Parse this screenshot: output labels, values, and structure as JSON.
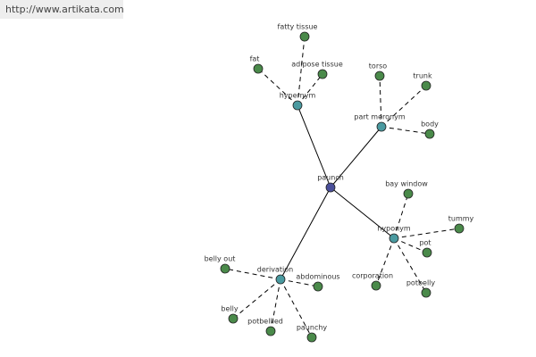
{
  "header": {
    "url": "http://www.artikata.com"
  },
  "nodes": [
    {
      "label": "paunch"
    },
    {
      "label": "hypernym"
    },
    {
      "label": "part meronym"
    },
    {
      "label": "hyponym"
    },
    {
      "label": "derivation"
    },
    {
      "label": "fatty tissue"
    },
    {
      "label": "adipose tissue"
    },
    {
      "label": "fat"
    },
    {
      "label": "torso"
    },
    {
      "label": "trunk"
    },
    {
      "label": "body"
    },
    {
      "label": "bay window"
    },
    {
      "label": "tummy"
    },
    {
      "label": "pot"
    },
    {
      "label": "potbelly"
    },
    {
      "label": "corporation"
    },
    {
      "label": "belly out"
    },
    {
      "label": "abdominous"
    },
    {
      "label": "belly"
    },
    {
      "label": "potbellied"
    },
    {
      "label": "paunchy"
    }
  ]
}
